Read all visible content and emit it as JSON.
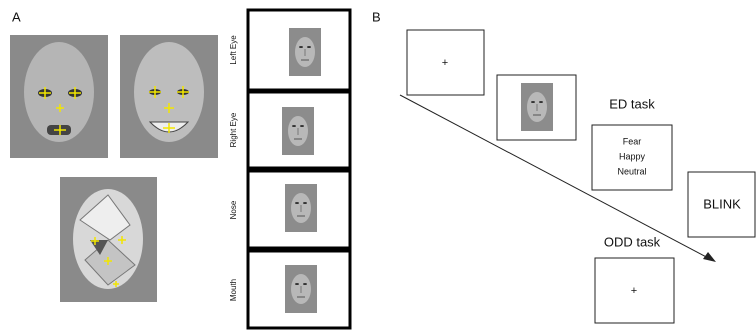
{
  "panel_a": {
    "label": "A",
    "regions": [
      "Left Eye",
      "Right Eye",
      "Nose",
      "Mouth"
    ]
  },
  "panel_b": {
    "label": "B",
    "fixation_1": "+",
    "ed_task": "ED task",
    "ed_options": [
      "Fear",
      "Happy",
      "Neutral"
    ],
    "blink": "BLINK",
    "odd_task": "ODD task",
    "fixation_2": "+"
  }
}
